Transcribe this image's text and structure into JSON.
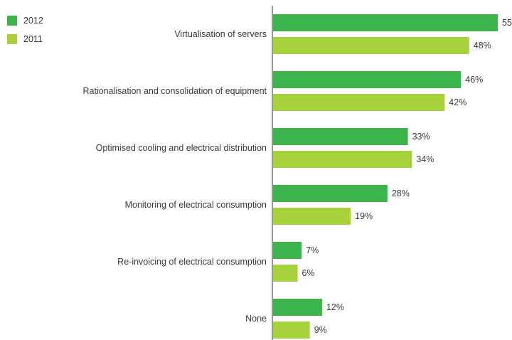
{
  "chart_data": {
    "type": "bar",
    "orientation": "horizontal",
    "categories": [
      "Virtualisation of servers",
      "Rationalisation and consolidation of equipment",
      "Optimised cooling and electrical distribution",
      "Monitoring of electrical consumption",
      "Re-invoicing of electrical consumption",
      "None"
    ],
    "series": [
      {
        "name": "2012",
        "color": "#3cb44b",
        "values": [
          55,
          46,
          33,
          28,
          7,
          12
        ],
        "labels": [
          "55",
          "46%",
          "33%",
          "28%",
          "7%",
          "12%"
        ]
      },
      {
        "name": "2011",
        "color": "#a8cf3c",
        "values": [
          48,
          42,
          34,
          19,
          6,
          9
        ],
        "labels": [
          "48%",
          "42%",
          "34%",
          "19%",
          "6%",
          "9%"
        ]
      }
    ],
    "xlim": [
      0,
      55
    ],
    "legend": "top-left",
    "grid": false,
    "title": "",
    "xlabel": "",
    "ylabel": ""
  }
}
